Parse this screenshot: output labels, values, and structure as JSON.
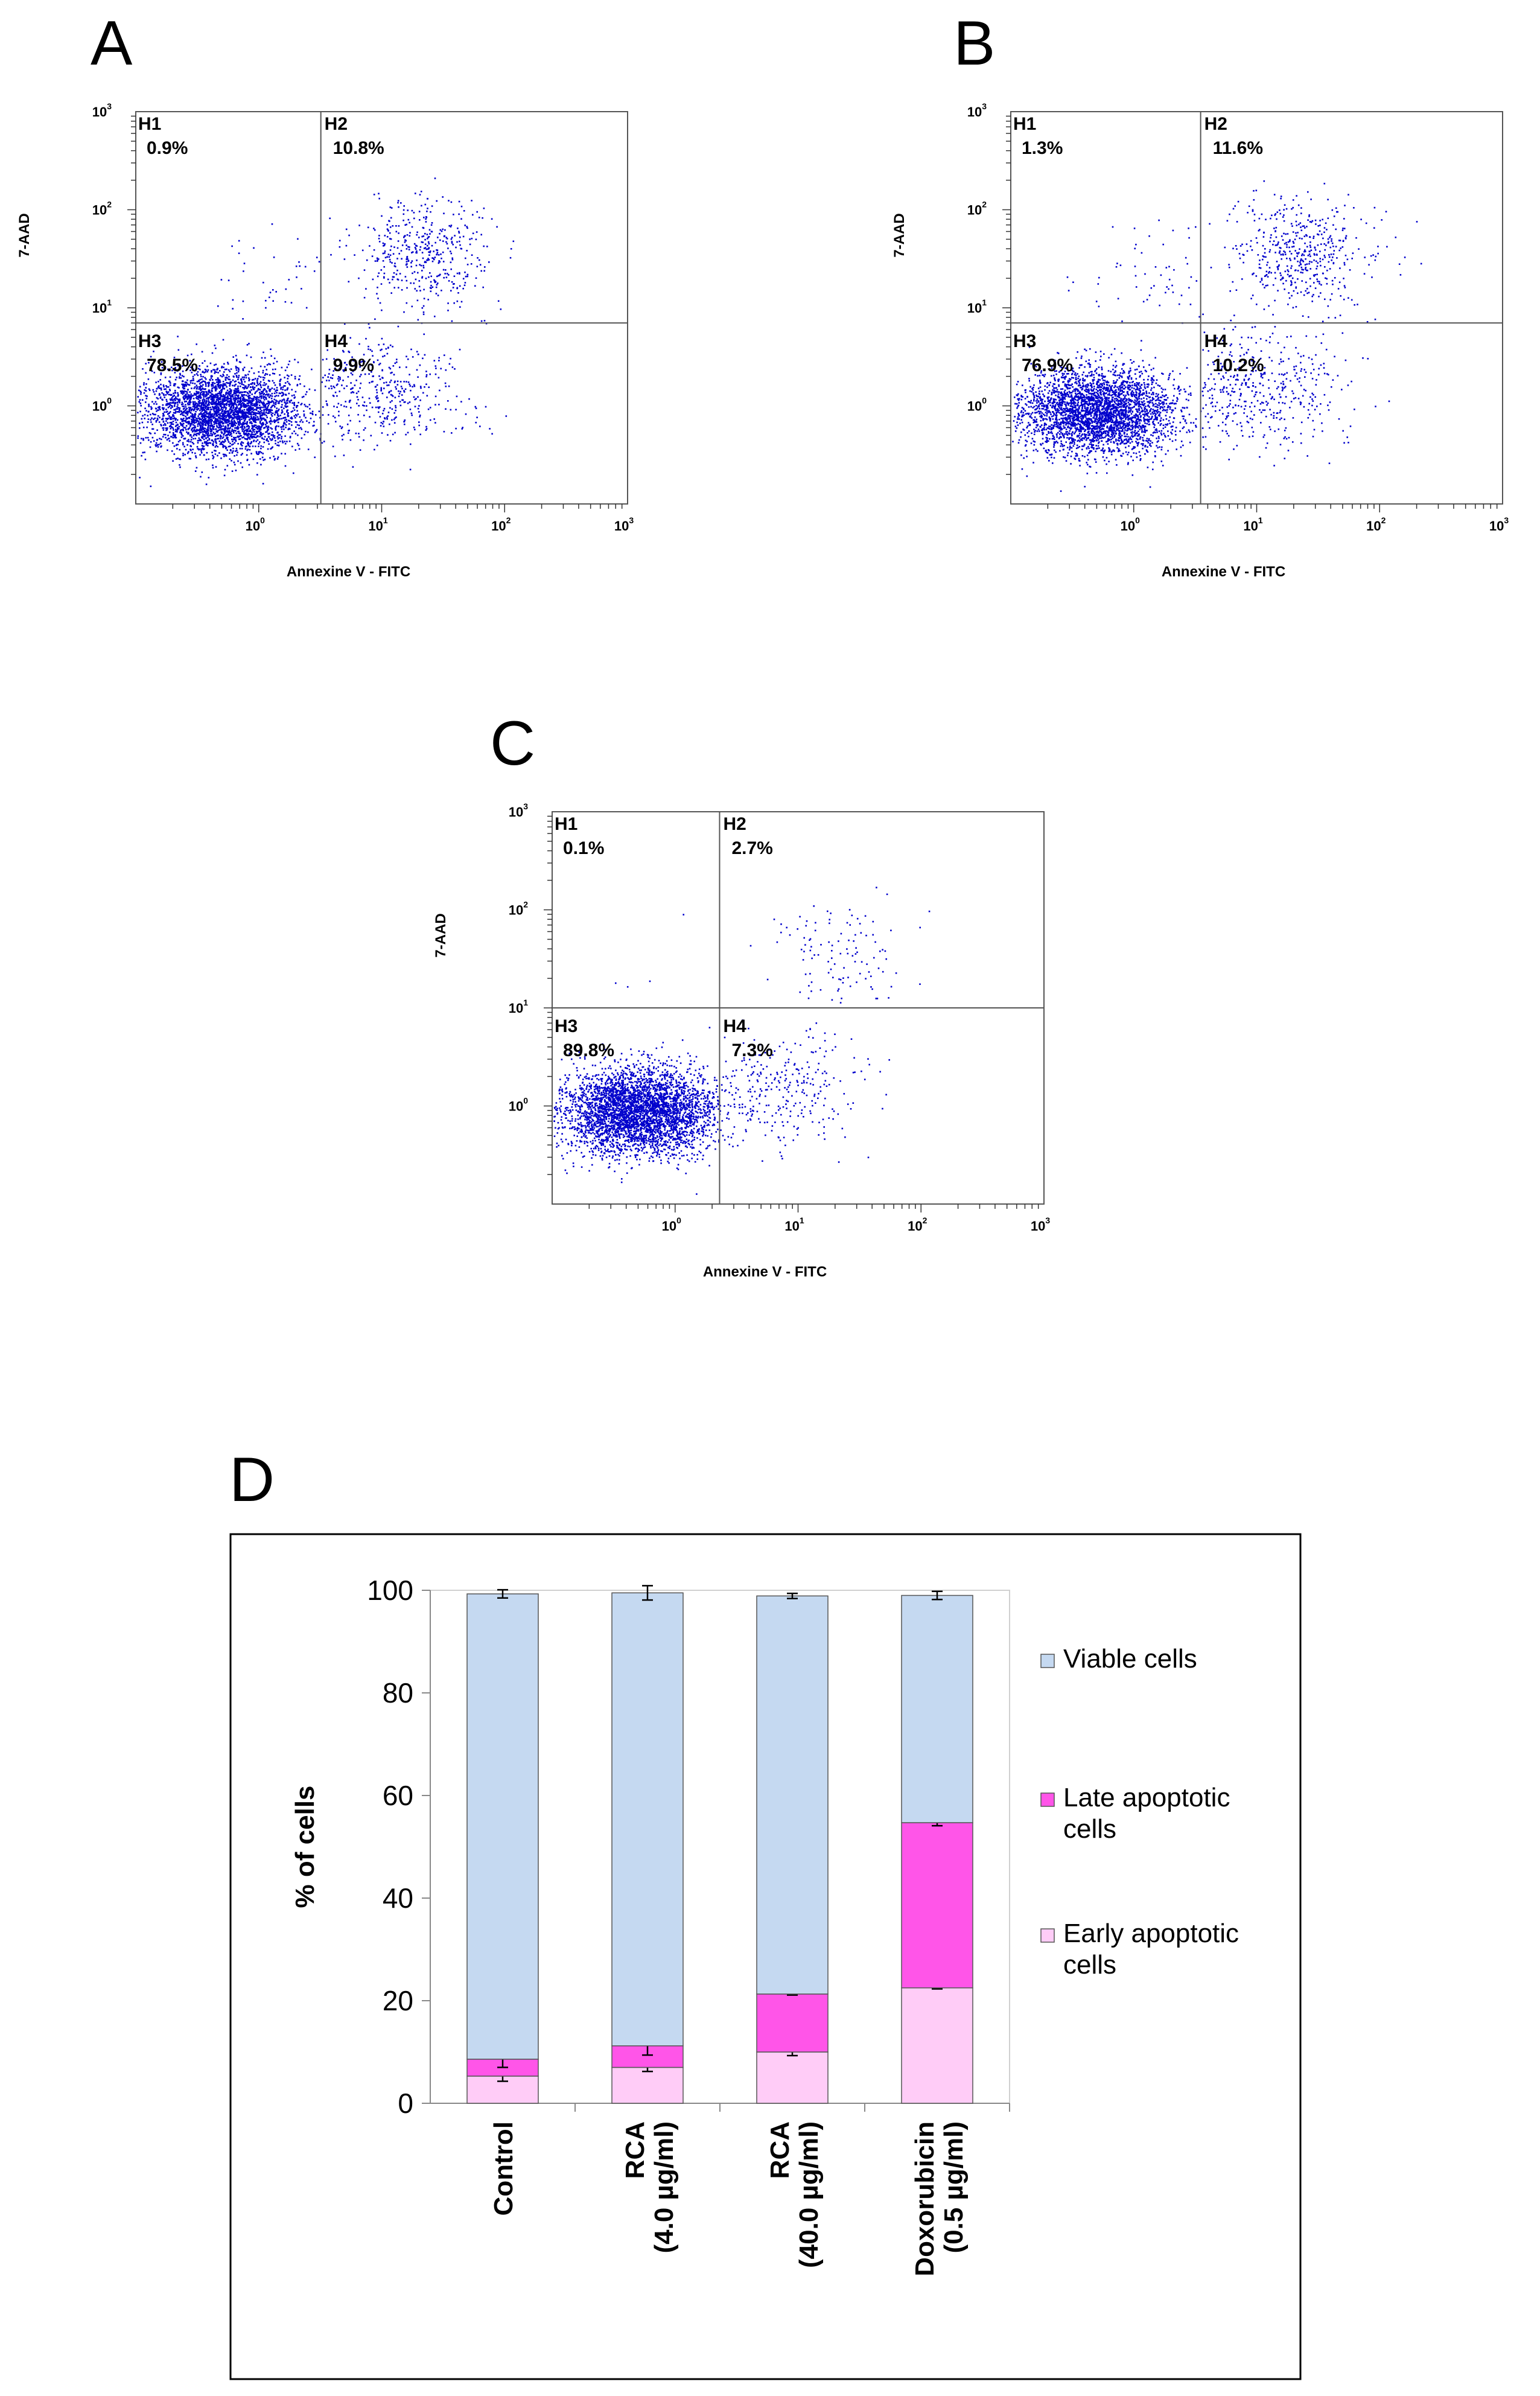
{
  "panels": {
    "a": "A",
    "b": "B",
    "c": "C",
    "d": "D"
  },
  "chart_data": [
    {
      "type": "scatter",
      "panel": "A",
      "xlabel": "Annexine V - FITC",
      "ylabel": "7-AAD",
      "x_scale": "log",
      "y_scale": "log",
      "xlim": [
        0.1,
        1000
      ],
      "ylim": [
        0.1,
        1000
      ],
      "x_ticks": [
        1,
        10,
        100,
        1000
      ],
      "y_ticks": [
        1,
        10,
        100,
        1000
      ],
      "tick_base": "10",
      "tick_exponents": [
        "0",
        "1",
        "2",
        "3"
      ],
      "gate_x": 3.2,
      "gate_y": 7,
      "quadrants": [
        {
          "name": "H1",
          "value": "0.9%"
        },
        {
          "name": "H2",
          "value": "10.8%"
        },
        {
          "name": "H3",
          "value": "78.5%"
        },
        {
          "name": "H4",
          "value": "9.9%"
        }
      ],
      "cell_fractions": {
        "H1": 0.9,
        "H2": 10.8,
        "H3": 78.5,
        "H4": 9.9
      },
      "point_color": "#0000cc"
    },
    {
      "type": "scatter",
      "panel": "B",
      "xlabel": "Annexine V - FITC",
      "ylabel": "7-AAD",
      "x_scale": "log",
      "y_scale": "log",
      "xlim": [
        0.1,
        1000
      ],
      "ylim": [
        0.1,
        1000
      ],
      "x_ticks": [
        1,
        10,
        100,
        1000
      ],
      "y_ticks": [
        1,
        10,
        100,
        1000
      ],
      "tick_base": "10",
      "tick_exponents": [
        "0",
        "1",
        "2",
        "3"
      ],
      "gate_x": 3.5,
      "gate_y": 7,
      "quadrants": [
        {
          "name": "H1",
          "value": "1.3%"
        },
        {
          "name": "H2",
          "value": "11.6%"
        },
        {
          "name": "H3",
          "value": "76.9%"
        },
        {
          "name": "H4",
          "value": "10.2%"
        }
      ],
      "cell_fractions": {
        "H1": 1.3,
        "H2": 11.6,
        "H3": 76.9,
        "H4": 10.2
      },
      "point_color": "#0000cc"
    },
    {
      "type": "scatter",
      "panel": "C",
      "xlabel": "Annexine V - FITC",
      "ylabel": "7-AAD",
      "x_scale": "log",
      "y_scale": "log",
      "xlim": [
        0.1,
        1000
      ],
      "ylim": [
        0.1,
        1000
      ],
      "x_ticks": [
        1,
        10,
        100,
        1000
      ],
      "y_ticks": [
        1,
        10,
        100,
        1000
      ],
      "tick_base": "10",
      "tick_exponents": [
        "0",
        "1",
        "2",
        "3"
      ],
      "gate_x": 2.3,
      "gate_y": 10,
      "quadrants": [
        {
          "name": "H1",
          "value": "0.1%"
        },
        {
          "name": "H2",
          "value": "2.7%"
        },
        {
          "name": "H3",
          "value": "89.8%"
        },
        {
          "name": "H4",
          "value": "7.3%"
        }
      ],
      "cell_fractions": {
        "H1": 0.1,
        "H2": 2.7,
        "H3": 89.8,
        "H4": 7.3
      },
      "point_color": "#0000cc"
    },
    {
      "type": "bar",
      "stacked": true,
      "panel": "D",
      "ylabel": "% of cells",
      "ylim": [
        0,
        100
      ],
      "y_ticks": [
        0,
        20,
        40,
        60,
        80,
        100
      ],
      "categories": [
        {
          "line1": "Control",
          "line2": ""
        },
        {
          "line1": "RCA",
          "line2": "(4.0 µg/ml)"
        },
        {
          "line1": "RCA",
          "line2": "(40.0 µg/ml)"
        },
        {
          "line1": "Doxorubicin",
          "line2": "(0.5 µg/ml)"
        }
      ],
      "series": [
        {
          "name": "Early apoptotic cells",
          "legend_lines": [
            "Early apoptotic",
            "cells"
          ],
          "color": "#ffccf7",
          "values": [
            5.3,
            7.0,
            10.0,
            22.5
          ],
          "errors": [
            1.0,
            0.8,
            0.7,
            0.2
          ]
        },
        {
          "name": "Late apoptotic cells",
          "legend_lines": [
            "Late apoptotic",
            "cells"
          ],
          "color": "#ff55e8",
          "values": [
            3.3,
            4.2,
            11.3,
            32.2
          ],
          "errors": [
            1.6,
            1.8,
            0.2,
            0.6
          ]
        },
        {
          "name": "Viable cells",
          "legend_lines": [
            "Viable cells"
          ],
          "color": "#c5d9f1",
          "values": [
            90.7,
            88.3,
            77.6,
            44.3
          ],
          "errors": [
            0.8,
            1.4,
            0.5,
            0.8
          ]
        }
      ],
      "legend_position": "right"
    }
  ]
}
